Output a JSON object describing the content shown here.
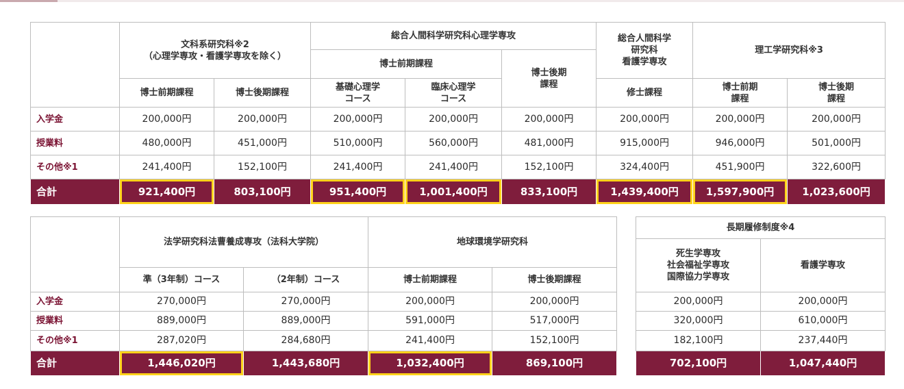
{
  "top_table": {
    "groups": [
      {
        "label": "文科系研究科※2\n（心理学専攻・看護学専攻を除く）"
      },
      {
        "label": "総合人間科学研究科心理学専攻",
        "sub_doctor_first": "博士前期課程",
        "sub_doctor_later": "博士後期\n課程"
      },
      {
        "label": "総合人間科学\n研究科\n看護学専攻"
      },
      {
        "label": "理工学研究科※3"
      }
    ],
    "columns": [
      "博士前期課程",
      "博士後期課程",
      "基礎心理学\nコース",
      "臨床心理学\nコース",
      "修士課程",
      "博士前期\n課程",
      "博士後期\n課程"
    ],
    "rows": [
      {
        "label": "入学金",
        "values": [
          "200,000円",
          "200,000円",
          "200,000円",
          "200,000円",
          "200,000円",
          "200,000円",
          "200,000円",
          "200,000円"
        ]
      },
      {
        "label": "授業料",
        "values": [
          "480,000円",
          "451,000円",
          "510,000円",
          "560,000円",
          "481,000円",
          "915,000円",
          "946,000円",
          "501,000円"
        ]
      },
      {
        "label": "その他※1",
        "values": [
          "241,400円",
          "152,100円",
          "241,400円",
          "241,400円",
          "152,100円",
          "324,400円",
          "451,900円",
          "322,600円"
        ]
      }
    ],
    "total": {
      "label": "合計",
      "values": [
        "921,400円",
        "803,100円",
        "951,400円",
        "1,001,400円",
        "833,100円",
        "1,439,400円",
        "1,597,900円",
        "1,023,600円"
      ]
    }
  },
  "bottom_left_table": {
    "groups": [
      {
        "label": "法学研究科法曹養成専攻（法科大学院）"
      },
      {
        "label": "地球環境学研究科"
      }
    ],
    "columns": [
      "準（3年制）コース",
      "（2年制）コース",
      "博士前期課程",
      "博士後期課程"
    ],
    "rows": [
      {
        "label": "入学金",
        "values": [
          "270,000円",
          "270,000円",
          "200,000円",
          "200,000円"
        ]
      },
      {
        "label": "授業料",
        "values": [
          "889,000円",
          "889,000円",
          "591,000円",
          "517,000円"
        ]
      },
      {
        "label": "その他※1",
        "values": [
          "287,020円",
          "284,680円",
          "241,400円",
          "152,100円"
        ]
      }
    ],
    "total": {
      "label": "合計",
      "values": [
        "1,446,020円",
        "1,443,680円",
        "1,032,400円",
        "869,100円"
      ]
    }
  },
  "bottom_right_table": {
    "group": "長期履修制度※4",
    "columns": [
      "死生学専攻\n社会福祉学専攻\n国際協力学専攻",
      "看護学専攻"
    ],
    "rows": [
      {
        "values": [
          "200,000円",
          "200,000円"
        ]
      },
      {
        "values": [
          "320,000円",
          "610,000円"
        ]
      },
      {
        "values": [
          "182,100円",
          "237,440円"
        ]
      }
    ],
    "total": {
      "values": [
        "702,100円",
        "1,047,440円"
      ]
    }
  },
  "colors": {
    "total_row": "#7f1d3c",
    "highlight": "#ffd21a",
    "row_label": "#7a1232"
  }
}
